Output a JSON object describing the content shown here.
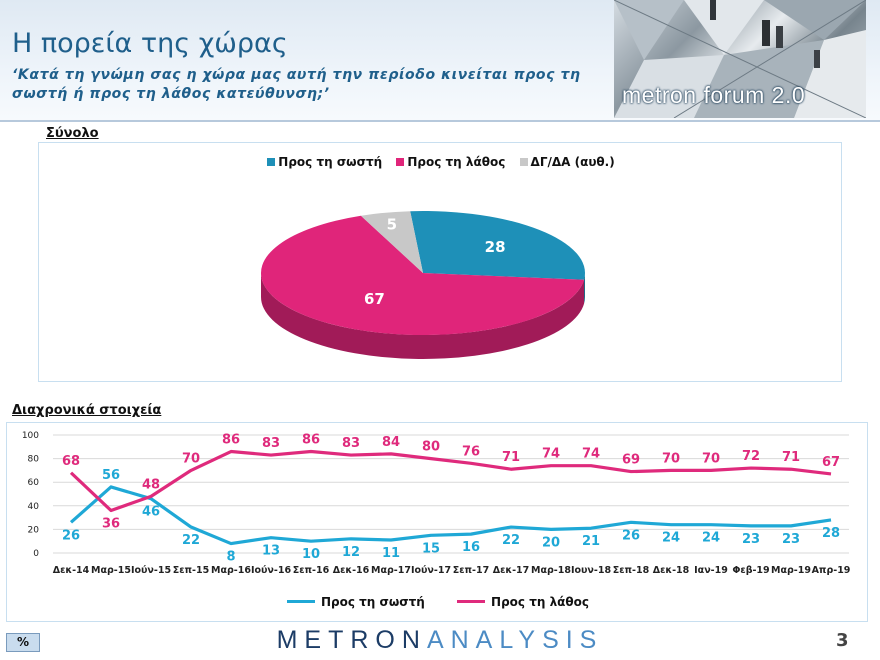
{
  "header": {
    "title": "Η πορεία της χώρας",
    "subtitle": "‘Κατά τη γνώμη σας η χώρα μας αυτή την περίοδο κινείται προς τη σωστή ή προς τη λάθος κατεύθυνση;’",
    "logo_text": "metron forum 2.0"
  },
  "colors": {
    "right": "#1e90b8",
    "wrong": "#e0257a",
    "dk": "#c8c8c8",
    "line_right": "#1fa8d6",
    "line_wrong": "#df2a7c"
  },
  "sections": {
    "pie_label": "Σύνολο",
    "trend_label": "Διαχρονικά στοιχεία"
  },
  "chart_data": [
    {
      "type": "pie",
      "legend": [
        "Προς τη σωστή",
        "Προς τη λάθος",
        "ΔΓ/ΔΑ (αυθ.)"
      ],
      "values": [
        28,
        67,
        5
      ],
      "labels": [
        "28",
        "67",
        "5"
      ],
      "legend_position": "top"
    },
    {
      "type": "line",
      "categories": [
        "Δεκ-14",
        "Μαρ-15",
        "Ιούν-15",
        "Σεπ-15",
        "Μαρ-16",
        "Ιούν-16",
        "Σεπ-16",
        "Δεκ-16",
        "Μαρ-17",
        "Ιούν-17",
        "Σεπ-17",
        "Δεκ-17",
        "Μαρ-18",
        "Ιουν-18",
        "Σεπ-18",
        "Δεκ-18",
        "Ιαν-19",
        "Φεβ-19",
        "Μαρ-19",
        "Απρ-19"
      ],
      "series": [
        {
          "name": "Προς τη σωστή",
          "values": [
            26,
            56,
            46,
            22,
            8,
            13,
            10,
            12,
            11,
            15,
            16,
            22,
            20,
            21,
            26,
            24,
            24,
            23,
            23,
            28
          ]
        },
        {
          "name": "Προς τη λάθος",
          "values": [
            68,
            36,
            48,
            70,
            86,
            83,
            86,
            83,
            84,
            80,
            76,
            71,
            74,
            74,
            69,
            70,
            70,
            72,
            71,
            67
          ]
        }
      ],
      "ylim": [
        0,
        100
      ],
      "yticks": [
        "0",
        "20",
        "40",
        "60",
        "80",
        "100"
      ],
      "grid": true,
      "legend_position": "bottom"
    }
  ],
  "footer": {
    "badge": "%",
    "brand_left": "METRON",
    "brand_right": "ANALYSIS",
    "page_number": "3"
  }
}
